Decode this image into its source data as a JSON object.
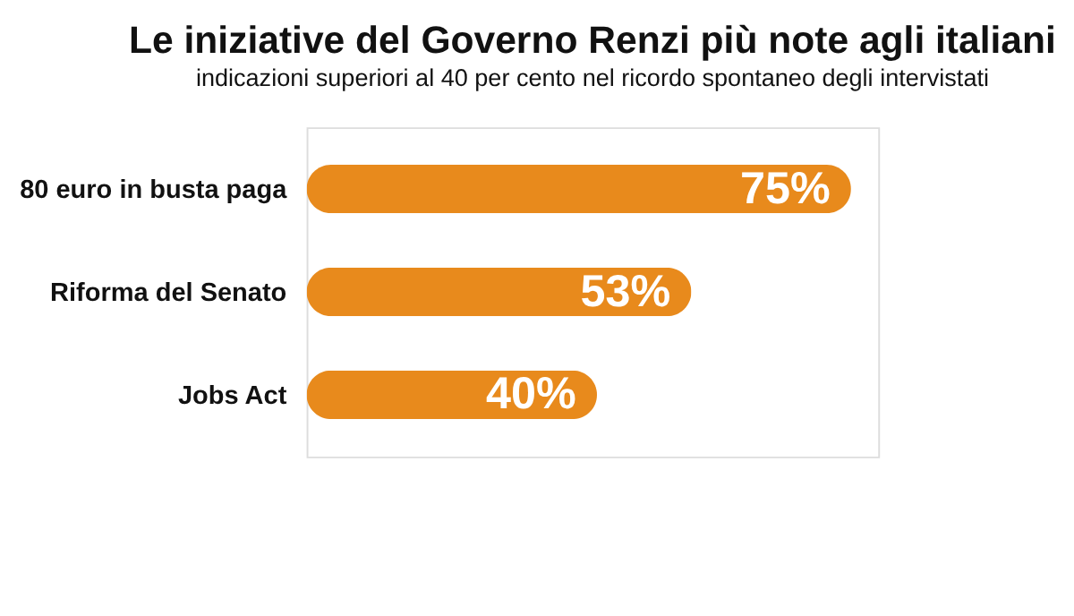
{
  "chart_data": {
    "type": "bar",
    "orientation": "horizontal",
    "title": "Le iniziative del Governo Renzi più note agli italiani",
    "subtitle": "indicazioni superiori al 40 per cento nel ricordo spontaneo degli intervistati",
    "categories": [
      "80 euro in busta paga",
      "Riforma del Senato",
      "Jobs Act"
    ],
    "values": [
      75,
      53,
      40
    ],
    "color": "#e88a1c",
    "value_labels": [
      "75%",
      "53%",
      "40%"
    ],
    "grid": false
  }
}
